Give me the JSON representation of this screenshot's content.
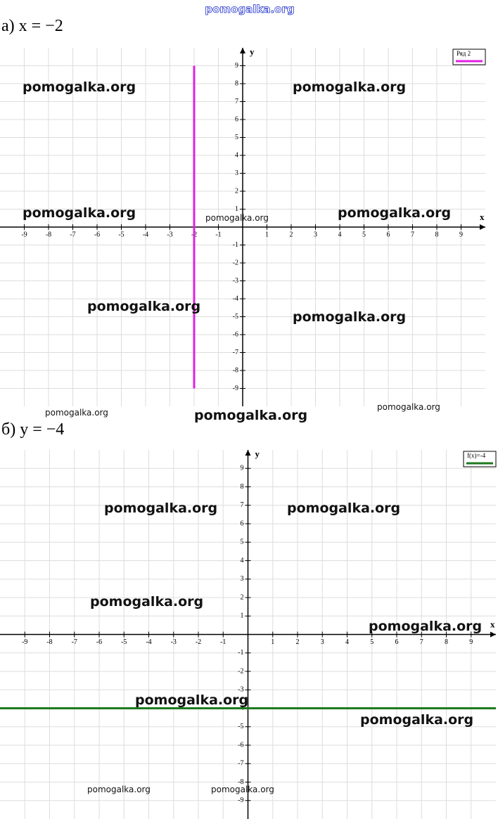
{
  "watermark": "pomogalka.org",
  "chart_data": [
    {
      "type": "line",
      "title": "а) x = −2",
      "xlabel": "x",
      "ylabel": "y",
      "xlim": [
        -10,
        10
      ],
      "ylim": [
        -10,
        10
      ],
      "xticks": [
        -9,
        -8,
        -7,
        -6,
        -5,
        -4,
        -3,
        -2,
        -1,
        1,
        2,
        3,
        4,
        5,
        6,
        7,
        8,
        9
      ],
      "yticks": [
        -9,
        -8,
        -7,
        -6,
        -5,
        -4,
        -3,
        -2,
        -1,
        1,
        2,
        3,
        4,
        5,
        6,
        7,
        8,
        9
      ],
      "grid": true,
      "series": [
        {
          "name": "Ряд 2",
          "color": "#e020e0",
          "x": [
            -2,
            -2
          ],
          "values": [
            -9,
            9
          ]
        }
      ]
    },
    {
      "type": "line",
      "title": "б) y = −4",
      "xlabel": "x",
      "ylabel": "y",
      "xlim": [
        -10,
        10
      ],
      "ylim": [
        -10,
        10
      ],
      "xticks": [
        -9,
        -8,
        -7,
        -6,
        -5,
        -4,
        -3,
        -2,
        -1,
        1,
        2,
        3,
        4,
        5,
        6,
        7,
        8,
        9
      ],
      "yticks": [
        -9,
        -8,
        -7,
        -6,
        -5,
        -4,
        -3,
        -2,
        -1,
        1,
        2,
        3,
        4,
        5,
        6,
        7,
        8,
        9
      ],
      "grid": true,
      "series": [
        {
          "name": "f(x)=-4",
          "color": "#1e7a1e",
          "x": [
            -10,
            10
          ],
          "values": [
            -4,
            -4
          ]
        }
      ]
    }
  ]
}
